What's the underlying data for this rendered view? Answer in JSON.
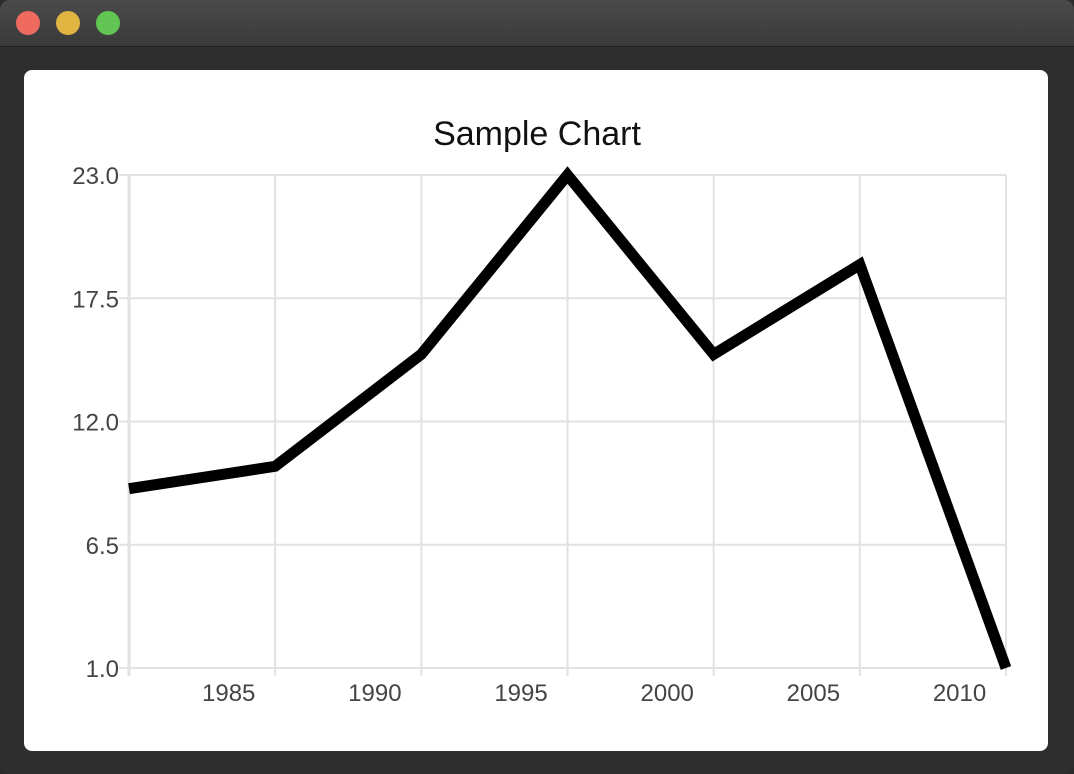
{
  "window": {
    "traffic_lights": {
      "close_color": "#ee6a5f",
      "minimize_color": "#e0b542",
      "maximize_color": "#62c554"
    }
  },
  "chart_data": {
    "type": "line",
    "title": "Sample Chart",
    "xlabel": "",
    "ylabel": "",
    "x": [
      1982,
      1987,
      1992,
      1997,
      2002,
      2007,
      2012
    ],
    "series": [
      {
        "values": [
          9.0,
          10.0,
          15.0,
          23.0,
          15.0,
          19.0,
          1.0
        ],
        "color": "#000000"
      }
    ],
    "xlim": [
      1982,
      2012
    ],
    "ylim": [
      1.0,
      23.0
    ],
    "x_ticks": [
      1985,
      1990,
      1995,
      2000,
      2005,
      2010
    ],
    "x_tick_labels": [
      "1985",
      "1990",
      "1995",
      "2000",
      "2005",
      "2010"
    ],
    "y_ticks": [
      1.0,
      6.5,
      12.0,
      17.5,
      23.0
    ],
    "y_tick_labels": [
      "1.0",
      "6.5",
      "12.0",
      "17.5",
      "23.0"
    ],
    "grid": true,
    "grid_color": "#e2e2e2"
  }
}
